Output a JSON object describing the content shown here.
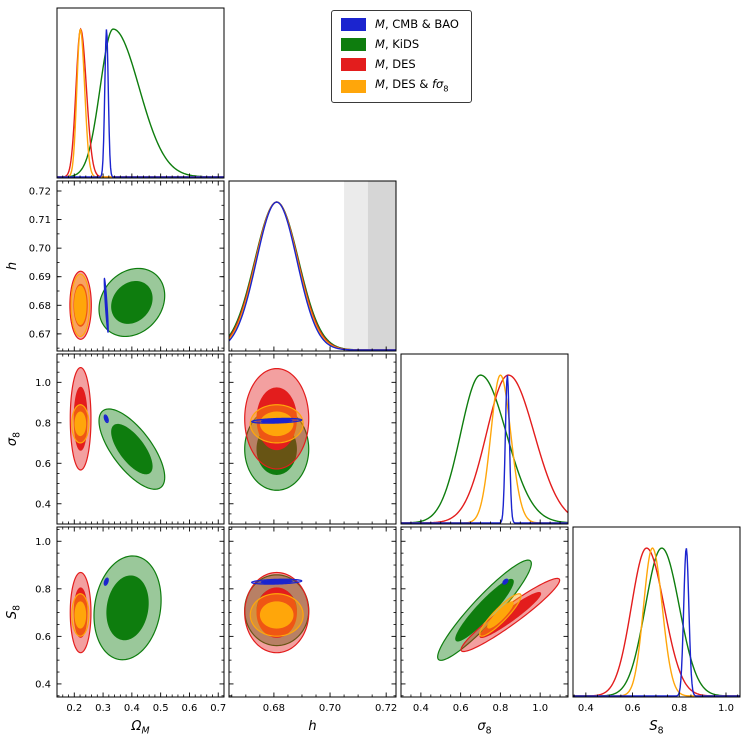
{
  "chart_data": {
    "type": "corner",
    "contour_levels": {
      "k68": 1.52,
      "k95": 2.48
    },
    "outer_fill_alpha": 0.42,
    "curve_peak_fraction": 0.87,
    "parameters": [
      {
        "id": "omega_m",
        "label": [
          {
            "t": "Ω",
            "i": 1
          },
          {
            "t": "M",
            "i": 1,
            "sub": 1
          }
        ],
        "range": [
          0.14,
          0.72
        ],
        "ticks": [
          0.2,
          0.3,
          0.4,
          0.5,
          0.6,
          0.7
        ],
        "tick_labels": [
          "0.2",
          "0.3",
          "0.4",
          "0.5",
          "0.6",
          "0.7"
        ],
        "minor": 0.02
      },
      {
        "id": "h",
        "label": [
          {
            "t": "h",
            "i": 1
          }
        ],
        "range": [
          0.664,
          0.7235
        ],
        "ticks": [
          0.68,
          0.7,
          0.72
        ],
        "tick_labels": [
          "0.68",
          "0.70",
          "0.72"
        ],
        "minor": 0.005,
        "yticks": [
          0.67,
          0.68,
          0.69,
          0.7,
          0.71,
          0.72
        ],
        "ytick_labels": [
          "0.67",
          "0.68",
          "0.69",
          "0.70",
          "0.71",
          "0.72"
        ]
      },
      {
        "id": "sigma8",
        "label": [
          {
            "t": "σ",
            "i": 1
          },
          {
            "t": "8",
            "sub": 1
          }
        ],
        "range": [
          0.3,
          1.14
        ],
        "ticks": [
          0.4,
          0.6,
          0.8,
          1.0
        ],
        "tick_labels": [
          "0.4",
          "0.6",
          "0.8",
          "1.0"
        ],
        "minor": 0.05
      },
      {
        "id": "s8",
        "label": [
          {
            "t": "S",
            "i": 1
          },
          {
            "t": "8",
            "sub": 1
          }
        ],
        "range": [
          0.345,
          1.06
        ],
        "ticks": [
          0.4,
          0.6,
          0.8,
          1.0
        ],
        "tick_labels": [
          "0.4",
          "0.6",
          "0.8",
          "1.0"
        ],
        "minor": 0.05
      }
    ],
    "series": [
      {
        "id": "cmb_bao",
        "z": 4,
        "color": "#1b24cf",
        "label": [
          {
            "t": "M",
            "i": 1
          },
          {
            "t": ", CMB & BAO"
          }
        ]
      },
      {
        "id": "kids",
        "z": 1,
        "color": "#0e7d0e",
        "label": [
          {
            "t": "M",
            "i": 1
          },
          {
            "t": ", KiDS"
          }
        ]
      },
      {
        "id": "des",
        "z": 2,
        "color": "#e31d1d",
        "label": [
          {
            "t": "M",
            "i": 1
          },
          {
            "t": ", DES"
          }
        ]
      },
      {
        "id": "des_fs8",
        "z": 3,
        "color": "#ffa60a",
        "label": [
          {
            "t": "M",
            "i": 1
          },
          {
            "t": ", DES & "
          },
          {
            "t": "fσ",
            "i": 1
          },
          {
            "t": "8",
            "sub": 1
          }
        ]
      }
    ],
    "posteriors_1d": {
      "omega_m": {
        "kids": {
          "mean": 0.335,
          "sl": 0.045,
          "sr": 0.09
        },
        "des": {
          "mean": 0.222,
          "sl": 0.016,
          "sr": 0.02
        },
        "des_fs8": {
          "mean": 0.221,
          "sl": 0.012,
          "sr": 0.015
        },
        "cmb_bao": {
          "mean": 0.312,
          "sl": 0.006,
          "sr": 0.006
        }
      },
      "h": {
        "kids": {
          "mean": 0.681,
          "sl": 0.0078,
          "sr": 0.0078
        },
        "des": {
          "mean": 0.681,
          "sl": 0.0076,
          "sr": 0.0076
        },
        "des_fs8": {
          "mean": 0.681,
          "sl": 0.0074,
          "sr": 0.0074
        },
        "cmb_bao": {
          "mean": 0.681,
          "sl": 0.0072,
          "sr": 0.0072
        }
      },
      "sigma8": {
        "kids": {
          "mean": 0.7,
          "sl": 0.1,
          "sr": 0.13
        },
        "des": {
          "mean": 0.84,
          "sl": 0.11,
          "sr": 0.13
        },
        "des_fs8": {
          "mean": 0.8,
          "sl": 0.048,
          "sr": 0.052
        },
        "cmb_bao": {
          "mean": 0.835,
          "sl": 0.01,
          "sr": 0.01
        }
      },
      "s8": {
        "kids": {
          "mean": 0.725,
          "sl": 0.07,
          "sr": 0.075
        },
        "des": {
          "mean": 0.66,
          "sl": 0.065,
          "sr": 0.075
        },
        "des_fs8": {
          "mean": 0.685,
          "sl": 0.038,
          "sr": 0.042
        },
        "cmb_bao": {
          "mean": 0.83,
          "sl": 0.011,
          "sr": 0.011
        }
      }
    },
    "contours_2d": {
      "omega_m|h": {
        "kids": {
          "cx": 0.4,
          "cy": 0.681,
          "sx": 0.046,
          "sy": 0.0048,
          "rho": 0.2
        },
        "des": {
          "cx": 0.222,
          "cy": 0.68,
          "sx": 0.015,
          "sy": 0.0048,
          "rho": 0
        },
        "des_fs8": {
          "cx": 0.221,
          "cy": 0.68,
          "sx": 0.013,
          "sy": 0.0044,
          "rho": 0
        },
        "cmb_bao": {
          "cx": 0.311,
          "cy": 0.68,
          "sx": 0.0028,
          "sy": 0.0038,
          "rho": -0.9
        }
      },
      "omega_m|sigma8": {
        "kids": {
          "cx": 0.4,
          "cy": 0.67,
          "sx": 0.046,
          "sy": 0.08,
          "rho": -0.7
        },
        "des": {
          "cx": 0.222,
          "cy": 0.82,
          "sx": 0.0145,
          "sy": 0.102,
          "rho": 0
        },
        "des_fs8": {
          "cx": 0.221,
          "cy": 0.795,
          "sx": 0.012,
          "sy": 0.038,
          "rho": 0
        },
        "cmb_bao": {
          "cx": 0.311,
          "cy": 0.82,
          "sx": 0.0028,
          "sy": 0.0075,
          "rho": -0.5
        }
      },
      "h|sigma8": {
        "kids": {
          "cx": 0.681,
          "cy": 0.67,
          "sx": 0.0046,
          "sy": 0.082,
          "rho": 0
        },
        "des": {
          "cx": 0.681,
          "cy": 0.82,
          "sx": 0.0046,
          "sy": 0.1,
          "rho": 0
        },
        "des_fs8": {
          "cx": 0.681,
          "cy": 0.795,
          "sx": 0.0038,
          "sy": 0.038,
          "rho": 0
        },
        "cmb_bao": {
          "cx": 0.681,
          "cy": 0.81,
          "sx": 0.0036,
          "sy": 0.0048,
          "rho": 0.35
        }
      },
      "omega_m|s8": {
        "kids": {
          "cx": 0.385,
          "cy": 0.72,
          "sx": 0.047,
          "sy": 0.088,
          "rho": 0.15
        },
        "des": {
          "cx": 0.222,
          "cy": 0.7,
          "sx": 0.0145,
          "sy": 0.068,
          "rho": 0
        },
        "des_fs8": {
          "cx": 0.221,
          "cy": 0.69,
          "sx": 0.012,
          "sy": 0.036,
          "rho": 0
        },
        "cmb_bao": {
          "cx": 0.311,
          "cy": 0.83,
          "sx": 0.0028,
          "sy": 0.006,
          "rho": 0.5
        }
      },
      "h|s8": {
        "kids": {
          "cx": 0.681,
          "cy": 0.71,
          "sx": 0.0046,
          "sy": 0.06,
          "rho": 0
        },
        "des": {
          "cx": 0.681,
          "cy": 0.7,
          "sx": 0.0046,
          "sy": 0.068,
          "rho": 0
        },
        "des_fs8": {
          "cx": 0.681,
          "cy": 0.69,
          "sx": 0.0038,
          "sy": 0.036,
          "rho": 0
        },
        "cmb_bao": {
          "cx": 0.681,
          "cy": 0.83,
          "sx": 0.0036,
          "sy": 0.0042,
          "rho": 0.3
        }
      },
      "sigma8|s8": {
        "kids": {
          "cx": 0.72,
          "cy": 0.71,
          "sx": 0.095,
          "sy": 0.085,
          "rho": 0.93
        },
        "des": {
          "cx": 0.85,
          "cy": 0.69,
          "sx": 0.1,
          "sy": 0.062,
          "rho": 0.95
        },
        "des_fs8": {
          "cx": 0.8,
          "cy": 0.69,
          "sx": 0.042,
          "sy": 0.036,
          "rho": 0.9
        },
        "cmb_bao": {
          "cx": 0.825,
          "cy": 0.83,
          "sx": 0.005,
          "sy": 0.0042,
          "rho": 0.5
        }
      }
    },
    "h_reference_bands": [
      {
        "range": [
          0.705,
          0.7135
        ],
        "color": "#ebebeb"
      },
      {
        "range": [
          0.7135,
          0.7235
        ],
        "color": "#d6d6d6"
      }
    ]
  }
}
